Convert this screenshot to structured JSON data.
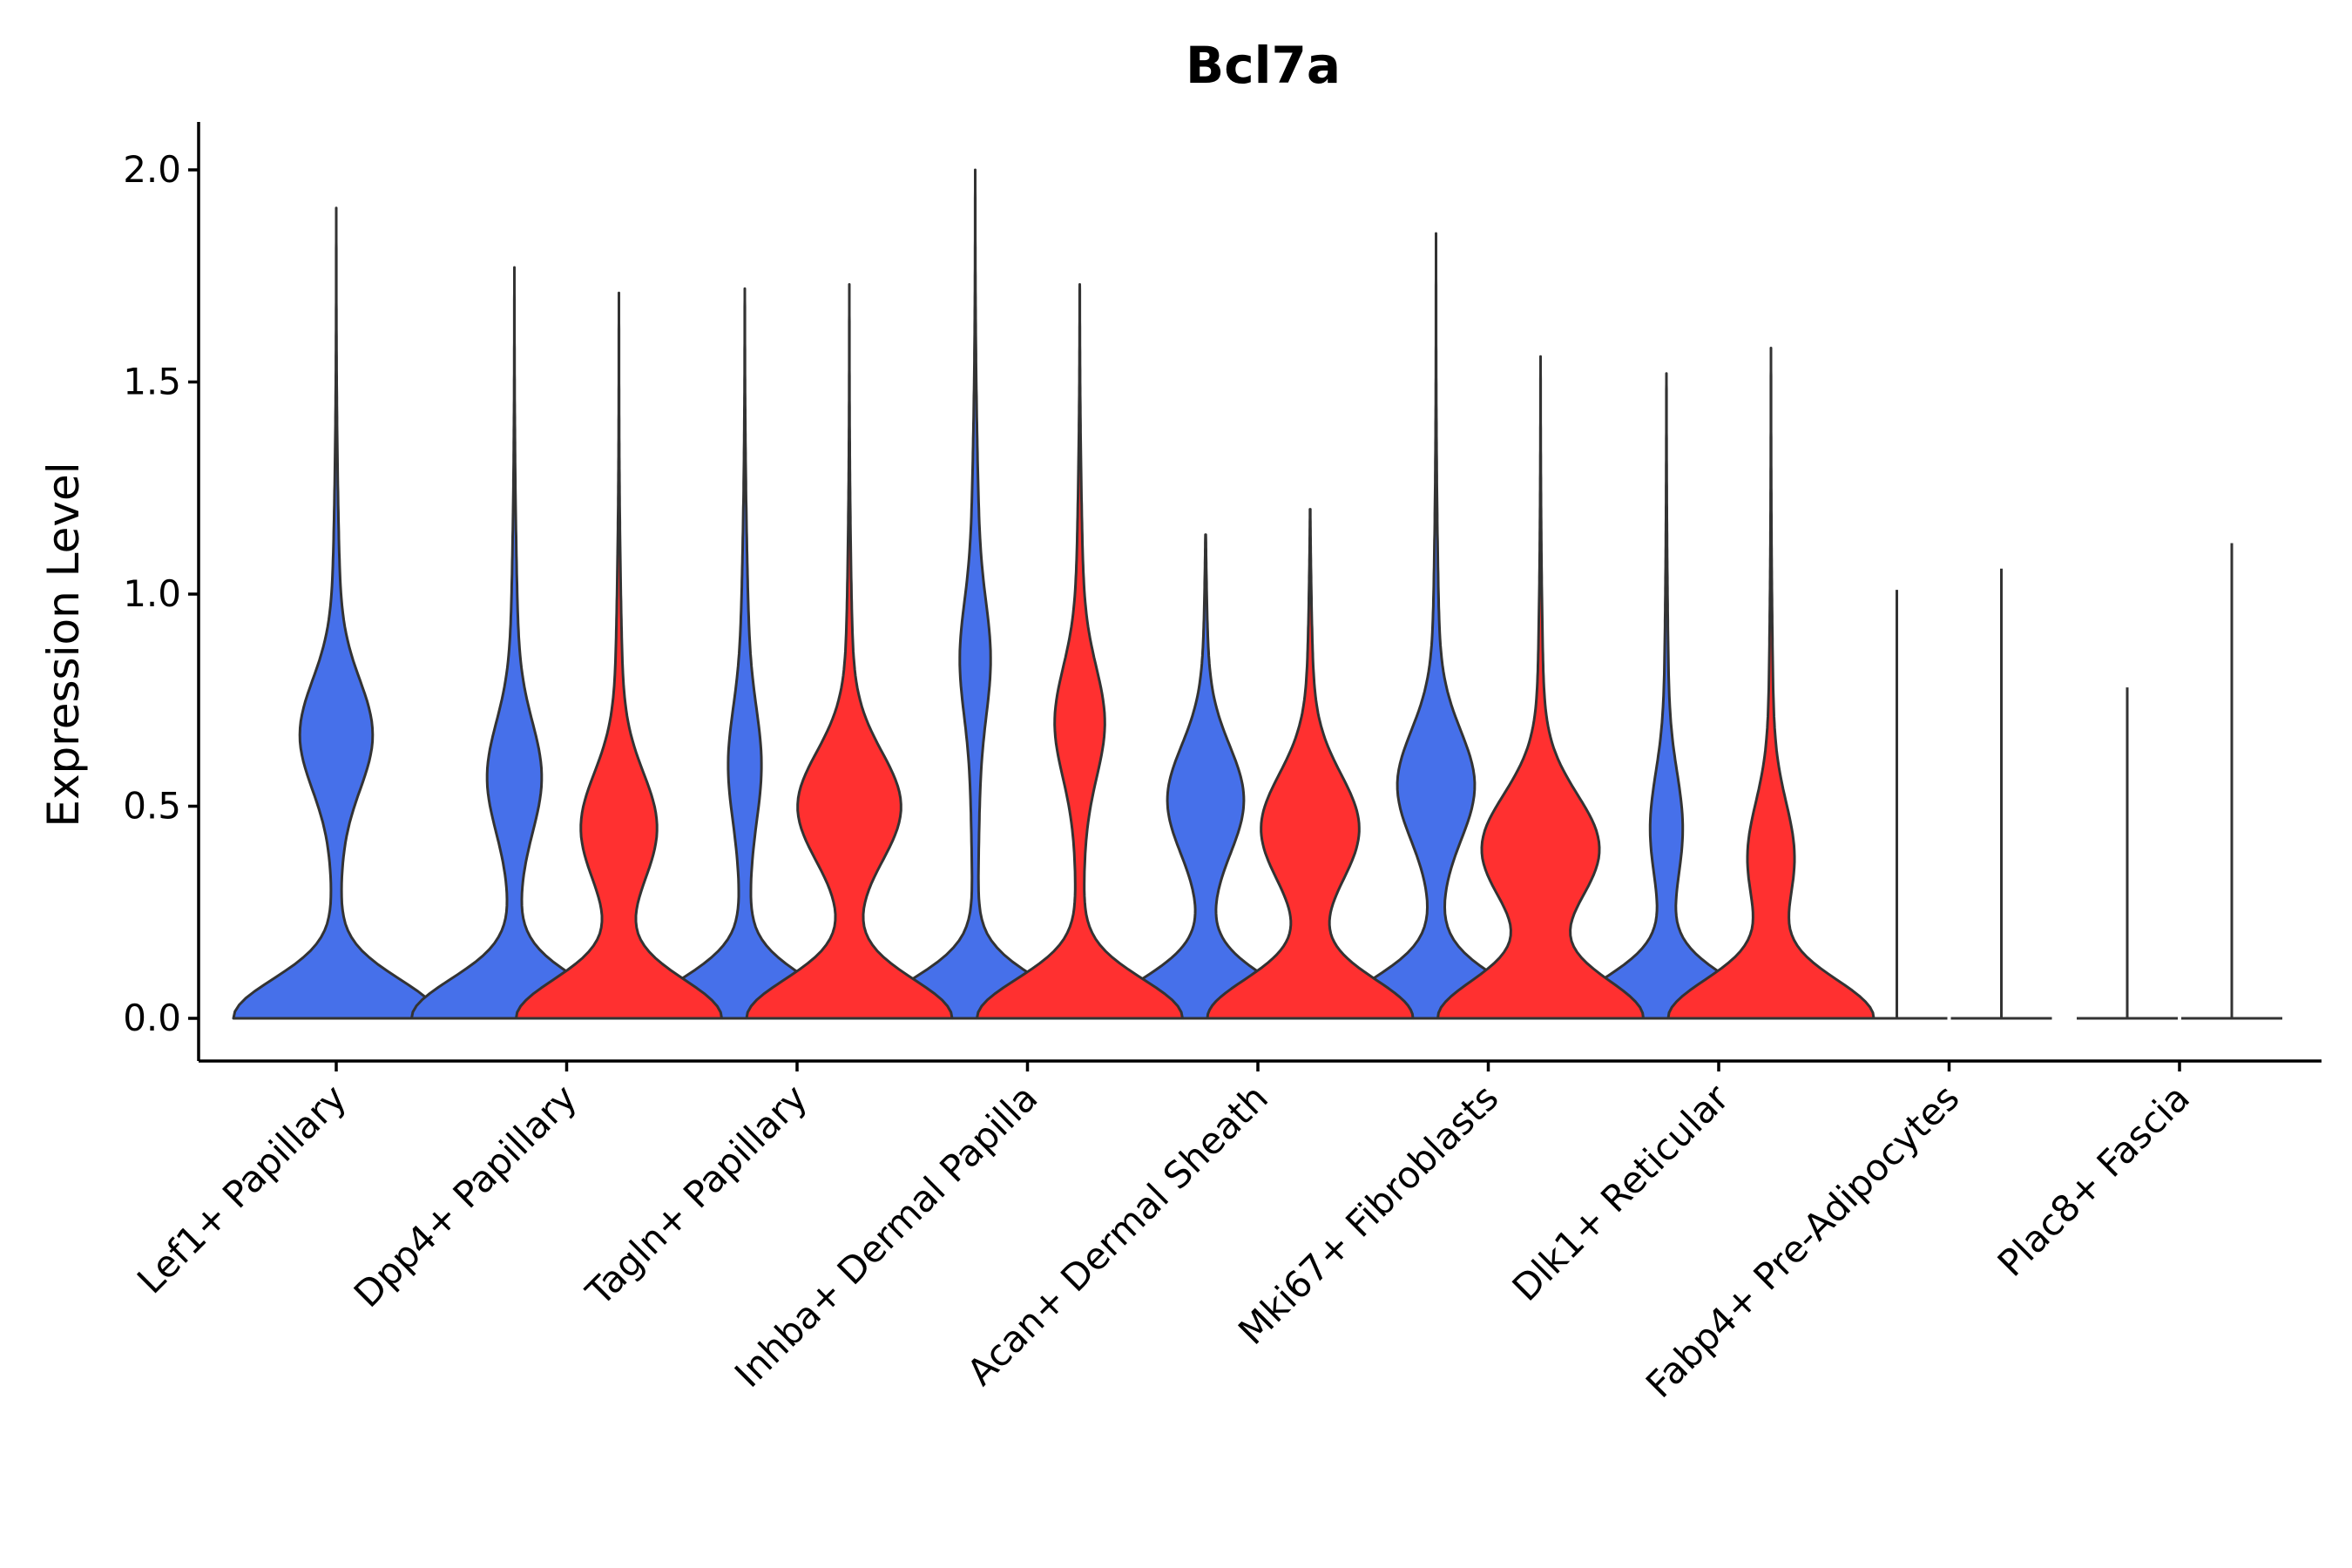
{
  "chart_data": {
    "type": "violin",
    "title": "Bcl7a",
    "xlabel": "",
    "ylabel": "Expression Level",
    "ylim": [
      -0.1,
      2.1
    ],
    "yticks": [
      "0.0",
      "0.5",
      "1.0",
      "1.5",
      "2.0"
    ],
    "categories": [
      "Lef1+ Papillary",
      "Dpp4+ Papillary",
      "Tagln+ Papillary",
      "Inhba+ Dermal Papilla",
      "Acan+ Dermal Sheath",
      "Mki67+ Fibroblasts",
      "Dlk1+ Reticular",
      "Fabp4+ Pre-Adipocytes",
      "Plac8+ Fascia"
    ],
    "colors": {
      "group1": "#4670EA",
      "group2": "#FF3030"
    },
    "series": [
      {
        "name": "group1",
        "color": "#4670EA",
        "violins": [
          {
            "category": "Lef1+ Papillary",
            "max": 1.91,
            "mode": 0.67,
            "lowBulge": 0.9,
            "modeWidth": 0.31
          },
          {
            "category": "Dpp4+ Papillary",
            "max": 1.77,
            "mode": 0.57,
            "lowBulge": 0.85,
            "modeWidth": 0.22
          },
          {
            "category": "Tagln+ Papillary",
            "max": 1.72,
            "mode": 0.6,
            "lowBulge": 0.9,
            "modeWidth": 0.11
          },
          {
            "category": "Inhba+ Dermal Papilla",
            "max": 2.0,
            "mode": 0.85,
            "lowBulge": 0.9,
            "modeWidth": 0.1
          },
          {
            "category": "Acan+ Dermal Sheath",
            "max": 1.14,
            "mode": 0.52,
            "lowBulge": 0.7,
            "modeWidth": 0.35
          },
          {
            "category": "Mki67+ Fibroblasts",
            "max": 1.85,
            "mode": 0.55,
            "lowBulge": 0.75,
            "modeWidth": 0.34
          },
          {
            "category": "Dlk1+ Reticular",
            "max": 1.52,
            "mode": 0.45,
            "lowBulge": 0.45,
            "modeWidth": 0.13
          },
          {
            "category": "Fabp4+ Pre-Adipocytes",
            "max": 1.01,
            "mode": 0.0,
            "lowBulge": 0.0,
            "modeWidth": 0.0
          },
          {
            "category": "Plac8+ Fascia",
            "max": 0.78,
            "mode": 0.0,
            "lowBulge": 0.0,
            "modeWidth": 0.0
          }
        ]
      },
      {
        "name": "group2",
        "color": "#FF3030",
        "violins": [
          {
            "category": "Dpp4+ Papillary",
            "max": 1.71,
            "mode": 0.45,
            "lowBulge": 0.85,
            "modeWidth": 0.33
          },
          {
            "category": "Tagln+ Papillary",
            "max": 1.73,
            "mode": 0.5,
            "lowBulge": 0.8,
            "modeWidth": 0.47
          },
          {
            "category": "Inhba+ Dermal Papilla",
            "max": 1.73,
            "mode": 0.7,
            "lowBulge": 0.85,
            "modeWidth": 0.2
          },
          {
            "category": "Acan+ Dermal Sheath",
            "max": 1.2,
            "mode": 0.45,
            "lowBulge": 0.8,
            "modeWidth": 0.45
          },
          {
            "category": "Mki67+ Fibroblasts",
            "max": 1.56,
            "mode": 0.4,
            "lowBulge": 0.7,
            "modeWidth": 0.55
          },
          {
            "category": "Dlk1+ Reticular",
            "max": 1.58,
            "mode": 0.38,
            "lowBulge": 0.5,
            "modeWidth": 0.2
          },
          {
            "category": "Fabp4+ Pre-Adipocytes",
            "max": 1.06,
            "mode": 0.0,
            "lowBulge": 0.0,
            "modeWidth": 0.0
          },
          {
            "category": "Plac8+ Fascia",
            "max": 1.12,
            "mode": 0.0,
            "lowBulge": 0.0,
            "modeWidth": 0.0
          }
        ]
      }
    ]
  }
}
